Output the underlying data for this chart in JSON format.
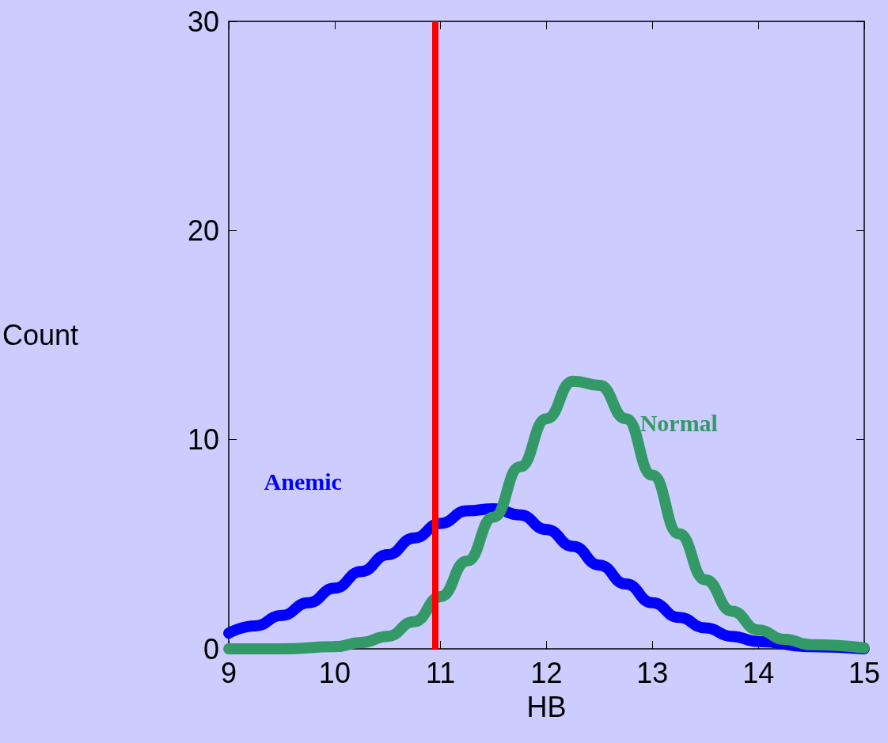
{
  "chart_data": {
    "type": "line",
    "xlabel": "HB",
    "ylabel": "Count",
    "xlim": [
      9,
      15
    ],
    "xticks": [
      9,
      10,
      11,
      12,
      13,
      14,
      15
    ],
    "ylim": [
      0,
      30
    ],
    "yticks": [
      0,
      10,
      20,
      30
    ],
    "grid": false,
    "legend": false,
    "marker": "none",
    "line_style": "solid",
    "series": [
      {
        "name": "Anemic",
        "color": "#0000ff",
        "x": [
          9,
          9.25,
          9.5,
          9.75,
          10,
          10.25,
          10.5,
          10.75,
          11,
          11.25,
          11.5,
          11.75,
          12,
          12.25,
          12.5,
          12.75,
          13,
          13.25,
          13.5,
          13.75,
          14,
          14.5,
          15
        ],
        "values": [
          0.75,
          1.1,
          1.6,
          2.2,
          2.9,
          3.7,
          4.5,
          5.3,
          6.0,
          6.6,
          6.7,
          6.4,
          5.7,
          4.9,
          4.0,
          3.1,
          2.2,
          1.5,
          1.0,
          0.6,
          0.35,
          0.1,
          0
        ]
      },
      {
        "name": "Normal",
        "color": "#339966",
        "x": [
          9,
          9.5,
          10,
          10.25,
          10.5,
          10.75,
          11,
          11.25,
          11.5,
          11.75,
          12,
          12.25,
          12.5,
          12.75,
          13,
          13.25,
          13.5,
          13.75,
          14,
          14.25,
          14.5,
          15
        ],
        "values": [
          0,
          0,
          0.1,
          0.3,
          0.6,
          1.3,
          2.5,
          4.2,
          6.3,
          8.7,
          11.0,
          12.8,
          12.6,
          11.0,
          8.3,
          5.5,
          3.3,
          1.8,
          0.9,
          0.45,
          0.2,
          0.05
        ]
      }
    ],
    "ref_lines": [
      {
        "axis": "x",
        "value": 10.95,
        "color": "#ff0000",
        "line_style": "solid"
      }
    ]
  }
}
